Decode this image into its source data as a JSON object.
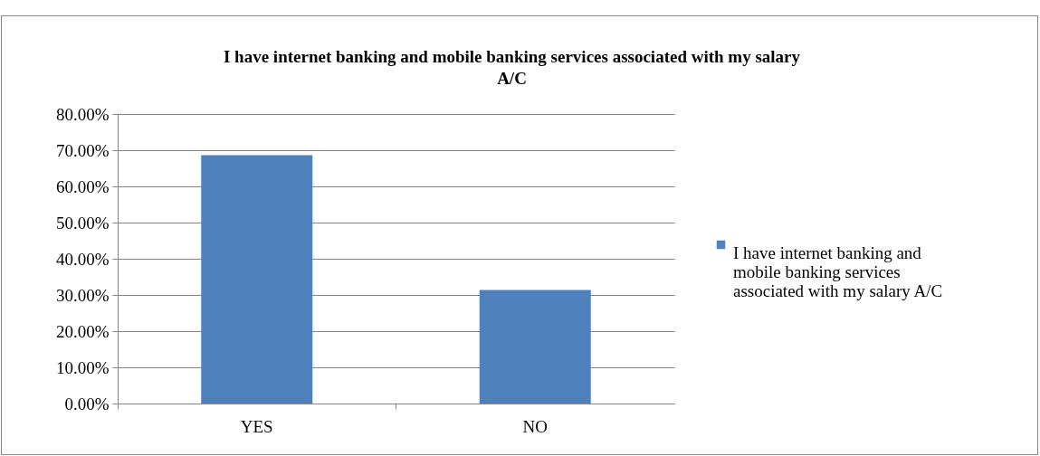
{
  "chart_data": {
    "type": "bar",
    "title": "I have internet banking and mobile banking services associated with my salary A/C",
    "categories": [
      "YES",
      "NO"
    ],
    "series": [
      {
        "name": "I have internet banking and mobile banking services associated with my salary A/C",
        "color": "#4f81bd",
        "values": [
          68.6,
          31.4
        ]
      }
    ],
    "ylim": [
      0,
      80
    ],
    "yticks": [
      {
        "value": 0,
        "label": "0.00%"
      },
      {
        "value": 10,
        "label": "10.00%"
      },
      {
        "value": 20,
        "label": "20.00%"
      },
      {
        "value": 30,
        "label": "30.00%"
      },
      {
        "value": 40,
        "label": "40.00%"
      },
      {
        "value": 50,
        "label": "50.00%"
      },
      {
        "value": 60,
        "label": "60.00%"
      },
      {
        "value": 70,
        "label": "70.00%"
      },
      {
        "value": 80,
        "label": "80.00%"
      }
    ],
    "grid": "y",
    "legend": "right"
  }
}
